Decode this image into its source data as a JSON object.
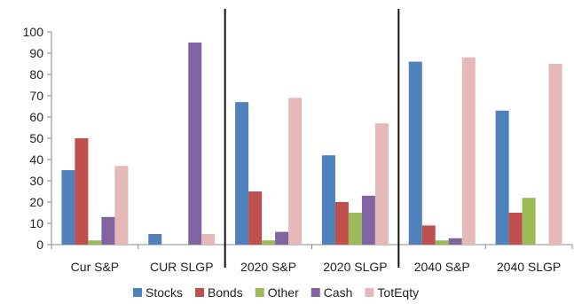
{
  "chart_data": {
    "type": "bar",
    "categories": [
      "Cur S&P",
      "CUR SLGP",
      "2020 S&P",
      "2020 SLGP",
      "2040 S&P",
      "2040 SLGP"
    ],
    "series": [
      {
        "name": "Stocks",
        "color": "#4f81bd",
        "values": [
          35,
          5,
          67,
          42,
          86,
          63
        ]
      },
      {
        "name": "Bonds",
        "color": "#c0504d",
        "values": [
          50,
          0,
          25,
          20,
          9,
          15
        ]
      },
      {
        "name": "Other",
        "color": "#9bbb59",
        "values": [
          2,
          0,
          2,
          15,
          2,
          22
        ]
      },
      {
        "name": "Cash",
        "color": "#8064a2",
        "values": [
          13,
          95,
          6,
          23,
          3,
          0
        ]
      },
      {
        "name": "TotEqty",
        "color": "#e6b9b8",
        "values": [
          37,
          5,
          69,
          57,
          88,
          85
        ]
      }
    ],
    "ylim": [
      0,
      100
    ],
    "yticks": [
      0,
      10,
      20,
      30,
      40,
      50,
      60,
      70,
      80,
      90,
      100
    ],
    "legend_position": "bottom",
    "grid": false,
    "separators_after_category": [
      1,
      3
    ]
  }
}
